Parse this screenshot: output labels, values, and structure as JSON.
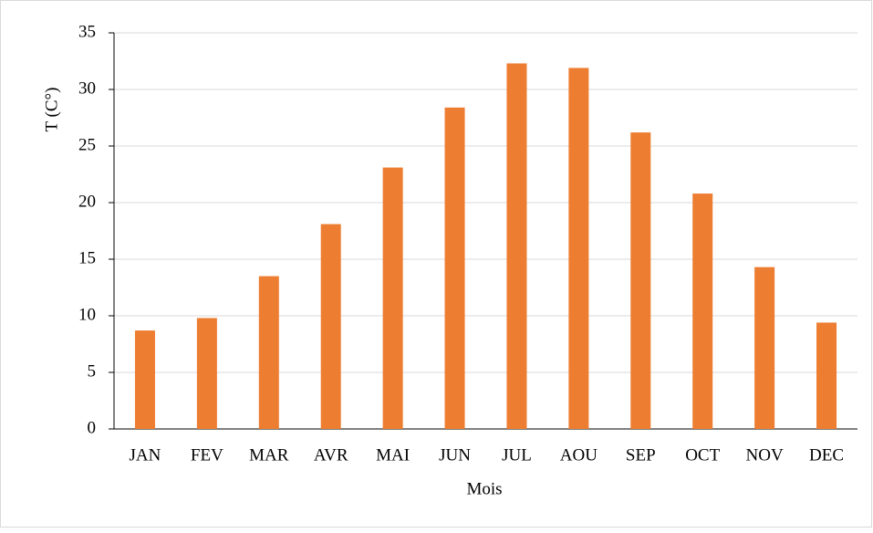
{
  "chart_data": {
    "type": "bar",
    "categories": [
      "JAN",
      "FEV",
      "MAR",
      "AVR",
      "MAI",
      "JUN",
      "JUL",
      "AOU",
      "SEP",
      "OCT",
      "NOV",
      "DEC"
    ],
    "values": [
      8.7,
      9.8,
      13.5,
      18.1,
      23.1,
      28.4,
      32.3,
      31.9,
      26.2,
      20.8,
      14.3,
      9.4
    ],
    "color": "#ed7d31",
    "x_label": "Mois",
    "y_label": "T (C°)",
    "ylim": [
      0,
      35
    ],
    "yticks": [
      0,
      5,
      10,
      15,
      20,
      25,
      30,
      35
    ],
    "grid": true
  }
}
